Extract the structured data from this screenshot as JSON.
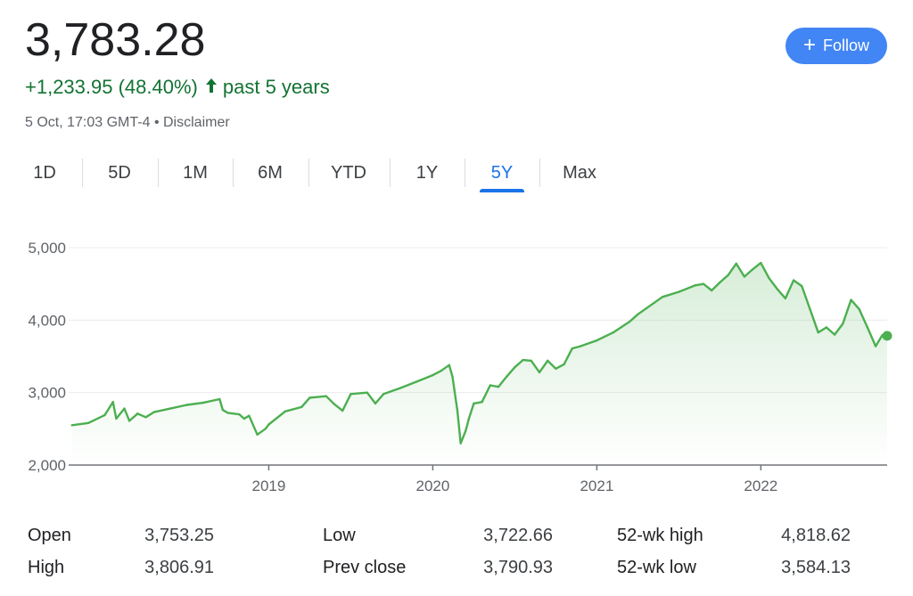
{
  "quote": {
    "price": "3,783.28",
    "change": "+1,233.95 (48.40%)",
    "change_arrow": "🡑",
    "period_label": "past 5 years",
    "timestamp": "5 Oct, 17:03 GMT-4",
    "separator": " • ",
    "disclaimer": "Disclaimer",
    "positive_color": "#137333"
  },
  "follow_button": {
    "icon": "+",
    "label": "Follow",
    "color": "#4285f4"
  },
  "tabs": [
    {
      "label": "1D",
      "active": false
    },
    {
      "label": "5D",
      "active": false
    },
    {
      "label": "1M",
      "active": false
    },
    {
      "label": "6M",
      "active": false
    },
    {
      "label": "YTD",
      "active": false
    },
    {
      "label": "1Y",
      "active": false
    },
    {
      "label": "5Y",
      "active": true
    },
    {
      "label": "Max",
      "active": false
    }
  ],
  "chart_data": {
    "type": "area",
    "title": "",
    "xlabel": "",
    "ylabel": "",
    "ylim": [
      2000,
      5000
    ],
    "xlim": [
      2017.78,
      2022.77
    ],
    "y_ticks": [
      2000,
      3000,
      4000,
      5000
    ],
    "y_tick_labels": [
      "2,000",
      "3,000",
      "4,000",
      "5,000"
    ],
    "x_ticks": [
      2019,
      2020,
      2021,
      2022
    ],
    "x_tick_labels": [
      "2019",
      "2020",
      "2021",
      "2022"
    ],
    "grid": true,
    "line_color": "#4caf50",
    "series": [
      {
        "x": [
          2017.8,
          2017.9,
          2018.0,
          2018.05,
          2018.07,
          2018.12,
          2018.15,
          2018.2,
          2018.25,
          2018.3,
          2018.4,
          2018.5,
          2018.6,
          2018.7,
          2018.72,
          2018.75,
          2018.82,
          2018.85,
          2018.88,
          2018.93,
          2018.98,
          2019.0,
          2019.1,
          2019.2,
          2019.25,
          2019.35,
          2019.4,
          2019.45,
          2019.5,
          2019.6,
          2019.65,
          2019.7,
          2019.8,
          2019.9,
          2020.0,
          2020.05,
          2020.1,
          2020.12,
          2020.15,
          2020.17,
          2020.2,
          2020.22,
          2020.25,
          2020.3,
          2020.35,
          2020.4,
          2020.45,
          2020.5,
          2020.55,
          2020.6,
          2020.65,
          2020.7,
          2020.75,
          2020.8,
          2020.85,
          2020.9,
          2021.0,
          2021.1,
          2021.2,
          2021.25,
          2021.3,
          2021.35,
          2021.4,
          2021.5,
          2021.6,
          2021.65,
          2021.7,
          2021.75,
          2021.8,
          2021.85,
          2021.9,
          2021.95,
          2022.0,
          2022.05,
          2022.1,
          2022.15,
          2022.2,
          2022.25,
          2022.3,
          2022.35,
          2022.4,
          2022.45,
          2022.5,
          2022.55,
          2022.6,
          2022.65,
          2022.7,
          2022.74,
          2022.77
        ],
        "y": [
          2550,
          2580,
          2690,
          2870,
          2640,
          2780,
          2610,
          2710,
          2660,
          2730,
          2780,
          2830,
          2860,
          2910,
          2760,
          2720,
          2700,
          2640,
          2680,
          2420,
          2500,
          2560,
          2740,
          2800,
          2930,
          2950,
          2840,
          2750,
          2980,
          3000,
          2850,
          2980,
          3060,
          3150,
          3240,
          3300,
          3380,
          3220,
          2750,
          2300,
          2470,
          2640,
          2850,
          2870,
          3100,
          3080,
          3220,
          3350,
          3450,
          3440,
          3280,
          3440,
          3330,
          3390,
          3610,
          3640,
          3720,
          3830,
          3980,
          4080,
          4160,
          4240,
          4320,
          4390,
          4480,
          4500,
          4410,
          4520,
          4620,
          4780,
          4600,
          4700,
          4790,
          4580,
          4430,
          4300,
          4550,
          4470,
          4150,
          3830,
          3900,
          3800,
          3950,
          4280,
          4150,
          3900,
          3640,
          3790,
          3783.28
        ]
      }
    ]
  },
  "stats": {
    "open_label": "Open",
    "open_value": "3,753.25",
    "high_label": "High",
    "high_value": "3,806.91",
    "low_label": "Low",
    "low_value": "3,722.66",
    "prev_close_label": "Prev close",
    "prev_close_value": "3,790.93",
    "wk52_high_label": "52-wk high",
    "wk52_high_value": "4,818.62",
    "wk52_low_label": "52-wk low",
    "wk52_low_value": "3,584.13"
  }
}
